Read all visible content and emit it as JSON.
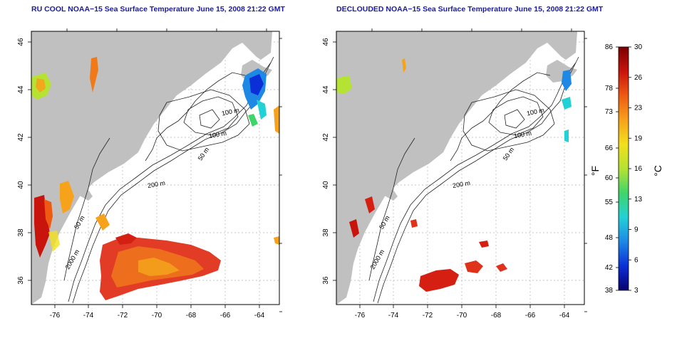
{
  "titles": {
    "left": "RU COOL NOAA−15 Sea Surface Temperature June 15, 2008 21:22 GMT",
    "right": "DECLOUDED NOAA−15 Sea Surface Temperature June 15, 2008 21:22 GMT"
  },
  "axes": {
    "lon_ticks": [
      "-76",
      "-74",
      "-72",
      "-70",
      "-68",
      "-66",
      "-64"
    ],
    "lat_ticks": [
      "36",
      "38",
      "40",
      "42",
      "44",
      "46"
    ]
  },
  "contour_labels": {
    "left": [
      "100 m",
      "100 m",
      "50 m",
      "200 m",
      "50 m",
      "2000 m"
    ],
    "right": [
      "100 m",
      "100 m",
      "50 m",
      "200 m",
      "50 m",
      "2000 m"
    ]
  },
  "colorbar": {
    "fahrenheit_label": "°F",
    "celsius_label": "°C",
    "fahrenheit_ticks": [
      "86",
      "78",
      "73",
      "66",
      "60",
      "55",
      "48",
      "42",
      "38"
    ],
    "celsius_ticks": [
      "30",
      "26",
      "23",
      "19",
      "16",
      "13",
      "9",
      "6",
      "3"
    ],
    "colors": [
      "#08006e",
      "#0a2fd6",
      "#1e88e5",
      "#22d1d6",
      "#3fd56a",
      "#b5e233",
      "#f2e01c",
      "#f7a21b",
      "#ee5a12",
      "#c8140d",
      "#7a0000"
    ]
  },
  "colors": {
    "land": "#c0c0c0",
    "title": "#1a1aa6",
    "grid": "#b4b4b4"
  }
}
